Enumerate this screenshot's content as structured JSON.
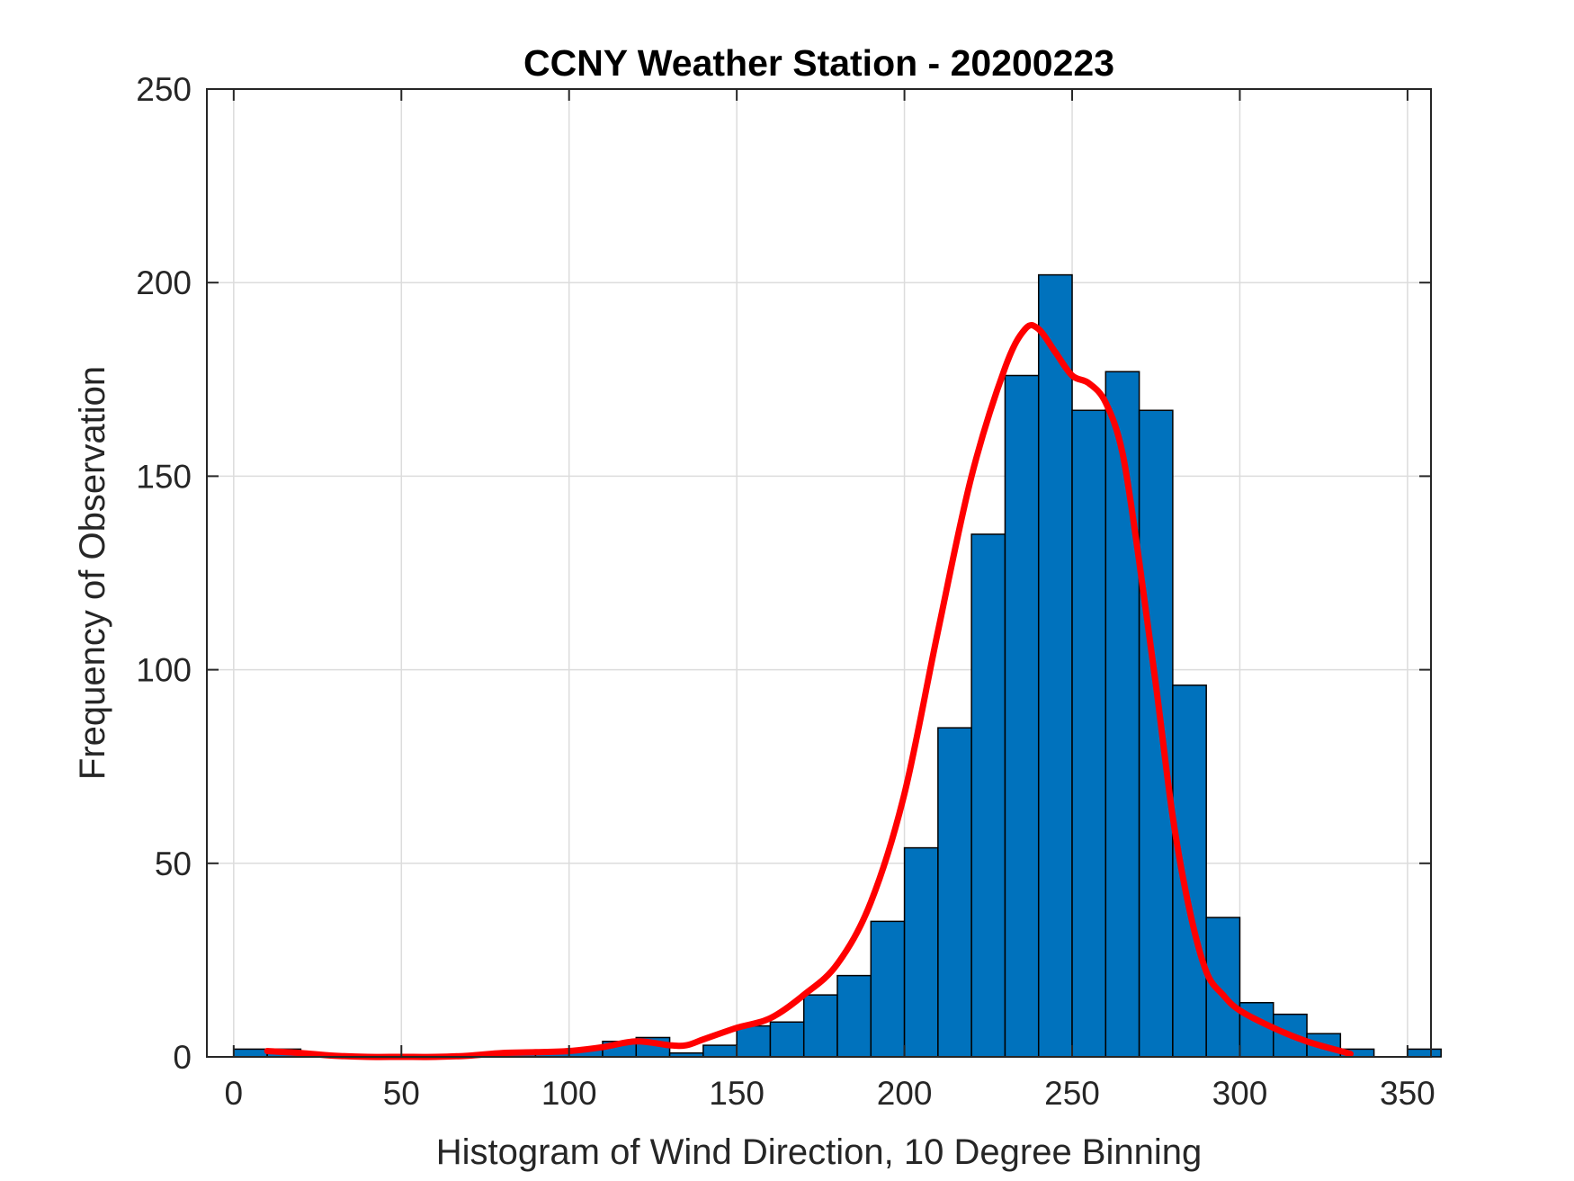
{
  "chart_data": {
    "type": "bar",
    "title": "CCNY Weather Station - 20200223",
    "xlabel": "Histogram of Wind Direction, 10 Degree Binning",
    "ylabel": "Frequency of Observation",
    "xlim": [
      -8,
      357
    ],
    "ylim": [
      0,
      250
    ],
    "xticks": [
      0,
      50,
      100,
      150,
      200,
      250,
      300,
      350
    ],
    "yticks": [
      0,
      50,
      100,
      150,
      200,
      250
    ],
    "grid": true,
    "bin_width": 10,
    "series": [
      {
        "type": "histogram",
        "color": "#0072BD",
        "edge_color": "#000000",
        "bins": [
          {
            "start": 0,
            "end": 10,
            "count": 2
          },
          {
            "start": 10,
            "end": 20,
            "count": 2
          },
          {
            "start": 20,
            "end": 30,
            "count": 0
          },
          {
            "start": 30,
            "end": 40,
            "count": 0
          },
          {
            "start": 40,
            "end": 50,
            "count": 0
          },
          {
            "start": 50,
            "end": 60,
            "count": 0
          },
          {
            "start": 60,
            "end": 70,
            "count": 0
          },
          {
            "start": 70,
            "end": 80,
            "count": 0
          },
          {
            "start": 80,
            "end": 90,
            "count": 1
          },
          {
            "start": 90,
            "end": 100,
            "count": 1
          },
          {
            "start": 100,
            "end": 110,
            "count": 2
          },
          {
            "start": 110,
            "end": 120,
            "count": 4
          },
          {
            "start": 120,
            "end": 130,
            "count": 5
          },
          {
            "start": 130,
            "end": 140,
            "count": 1
          },
          {
            "start": 140,
            "end": 150,
            "count": 3
          },
          {
            "start": 150,
            "end": 160,
            "count": 8
          },
          {
            "start": 160,
            "end": 170,
            "count": 9
          },
          {
            "start": 170,
            "end": 180,
            "count": 16
          },
          {
            "start": 180,
            "end": 190,
            "count": 21
          },
          {
            "start": 190,
            "end": 200,
            "count": 35
          },
          {
            "start": 200,
            "end": 210,
            "count": 54
          },
          {
            "start": 210,
            "end": 220,
            "count": 85
          },
          {
            "start": 220,
            "end": 230,
            "count": 135
          },
          {
            "start": 230,
            "end": 240,
            "count": 176
          },
          {
            "start": 240,
            "end": 250,
            "count": 202
          },
          {
            "start": 250,
            "end": 260,
            "count": 167
          },
          {
            "start": 260,
            "end": 270,
            "count": 177
          },
          {
            "start": 270,
            "end": 280,
            "count": 167
          },
          {
            "start": 280,
            "end": 290,
            "count": 96
          },
          {
            "start": 290,
            "end": 300,
            "count": 36
          },
          {
            "start": 300,
            "end": 310,
            "count": 14
          },
          {
            "start": 310,
            "end": 320,
            "count": 11
          },
          {
            "start": 320,
            "end": 330,
            "count": 6
          },
          {
            "start": 330,
            "end": 340,
            "count": 2
          },
          {
            "start": 340,
            "end": 350,
            "count": 0
          },
          {
            "start": 350,
            "end": 360,
            "count": 2
          }
        ]
      },
      {
        "type": "line",
        "color": "#FF0000",
        "x": [
          10,
          20,
          30,
          40,
          50,
          60,
          70,
          80,
          90,
          100,
          110,
          120,
          130,
          135,
          140,
          150,
          160,
          170,
          180,
          190,
          200,
          210,
          220,
          230,
          236,
          240,
          245,
          250,
          255,
          260,
          265,
          270,
          275,
          280,
          285,
          290,
          295,
          300,
          310,
          320,
          330,
          333
        ],
        "y": [
          1.5,
          1.0,
          0.3,
          0.0,
          0.0,
          0.0,
          0.3,
          1.0,
          1.2,
          1.5,
          2.5,
          4.0,
          3.0,
          3.0,
          4.5,
          7.5,
          10.0,
          16.0,
          24.0,
          40.0,
          68.0,
          110.0,
          150.0,
          178.0,
          188.0,
          188.0,
          182.0,
          176.0,
          174.0,
          169.0,
          156.0,
          128.0,
          96.0,
          62.0,
          38.0,
          22.0,
          16.0,
          12.0,
          7.5,
          4.0,
          1.5,
          0.8
        ]
      }
    ]
  }
}
